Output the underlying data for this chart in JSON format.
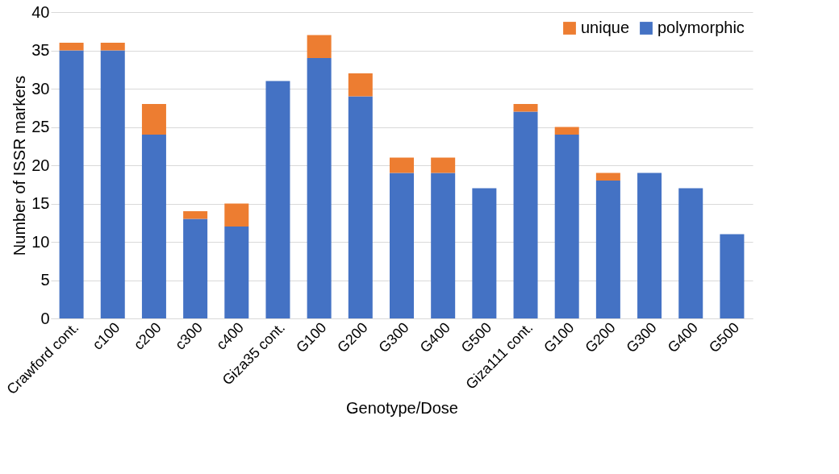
{
  "chart_data": {
    "type": "bar",
    "stacked": true,
    "xlabel": "Genotype/Dose",
    "ylabel": "Number of ISSR markers",
    "categories": [
      "Crawford cont.",
      "c100",
      "c200",
      "c300",
      "c400",
      "Giza35 cont.",
      "G100",
      "G200",
      "G300",
      "G400",
      "G500",
      "Giza111 cont.",
      "G100",
      "G200",
      "G300",
      "G400",
      "G500"
    ],
    "series": [
      {
        "name": "polymorphic",
        "color": "#4472c4",
        "values": [
          35,
          35,
          24,
          13,
          12,
          31,
          34,
          29,
          19,
          19,
          17,
          27,
          24,
          18,
          19,
          17,
          11
        ]
      },
      {
        "name": "unique",
        "color": "#ed7d31",
        "values": [
          1,
          1,
          4,
          1,
          3,
          0,
          3,
          3,
          2,
          2,
          0,
          1,
          1,
          1,
          0,
          0,
          0
        ]
      }
    ],
    "ylim": [
      0,
      40
    ],
    "yticks": [
      0,
      5,
      10,
      15,
      20,
      25,
      30,
      35,
      40
    ],
    "grid": "y",
    "legend": "top right"
  }
}
